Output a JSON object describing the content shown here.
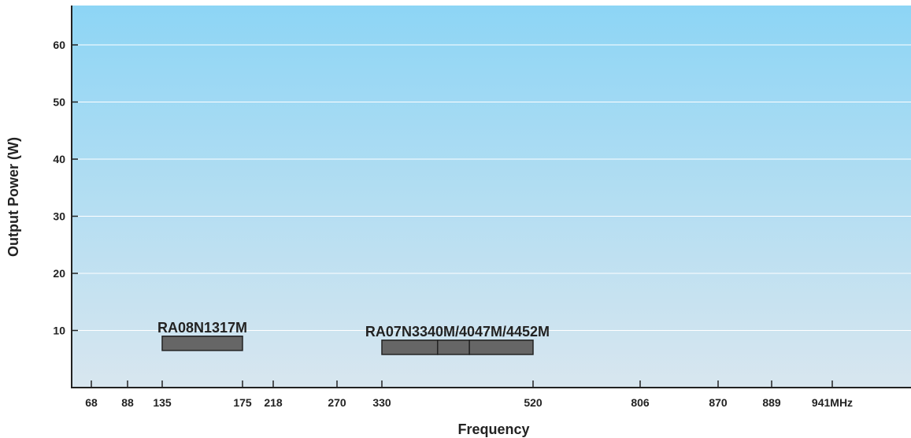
{
  "chart_data": {
    "type": "bar",
    "xlabel": "Frequency",
    "ylabel": "Output Power (W)",
    "ylim": [
      0,
      65
    ],
    "y_ticks": [
      10,
      20,
      30,
      40,
      50,
      60
    ],
    "x_ticks": [
      "68",
      "88",
      "135",
      "175",
      "218",
      "270",
      "330",
      "520",
      "806",
      "870",
      "889",
      "941MHz"
    ],
    "grid": "horizontal",
    "background": {
      "top": "#8dd5f5",
      "bottom": "#d8e6ef"
    },
    "bar_color": "#666666",
    "bands": [
      {
        "label": "RA08N1317M",
        "freq_min": 135,
        "freq_max": 175,
        "power_min": 6.5,
        "power_max": 9,
        "segments": [
          [
            135,
            175
          ]
        ]
      },
      {
        "label": "RA07N3340M/4047M/4452M",
        "freq_min": 330,
        "freq_max": 520,
        "power_min": 5.8,
        "power_max": 8.3,
        "segments": [
          [
            330,
            400
          ],
          [
            400,
            440
          ],
          [
            440,
            520
          ]
        ]
      }
    ]
  }
}
